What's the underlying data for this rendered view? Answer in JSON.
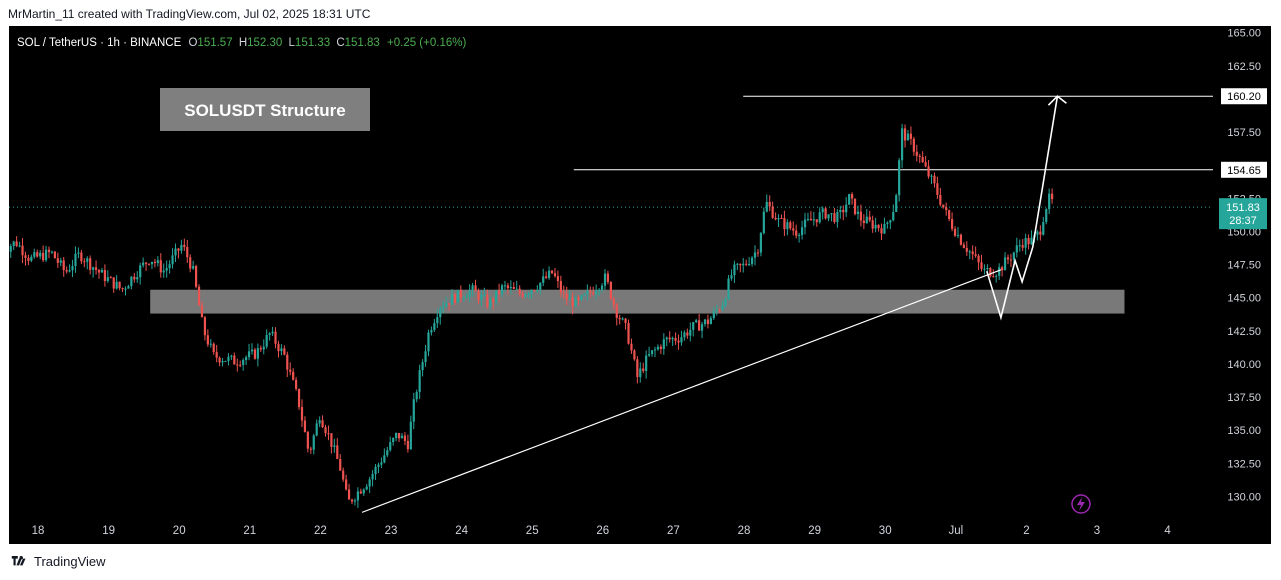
{
  "attribution": "MrMartin_11 created with TradingView.com, Jul 02, 2025 18:31 UTC",
  "footer": {
    "brand": "TradingView"
  },
  "colors": {
    "background": "#000000",
    "up_candle": "#26a69a",
    "down_candle": "#ef5350",
    "annotation": "#ffffff",
    "zone": "#7f7f7f",
    "price_badge": "#26a69a",
    "ohlc_up": "#4caf50"
  },
  "legend": {
    "symbol": "SOL / TetherUS · 1h · BINANCE",
    "o_label": "O",
    "o_value": "151.57",
    "h_label": "H",
    "h_value": "152.30",
    "l_label": "L",
    "l_value": "151.33",
    "c_label": "C",
    "c_value": "151.83",
    "change": "+0.25 (+0.16%)"
  },
  "icons": {
    "lightning": "lightning-icon",
    "logo": "tradingview-logo-icon"
  },
  "chart_data": {
    "type": "candlestick",
    "title": "SOLUSDT Structure",
    "interval": "1h",
    "x_labels": [
      "18",
      "19",
      "20",
      "21",
      "22",
      "23",
      "24",
      "25",
      "26",
      "27",
      "28",
      "29",
      "30",
      "Jul",
      "2",
      "3",
      "4"
    ],
    "y_ticks": [
      "165.00",
      "162.50",
      "160.20",
      "157.50",
      "154.65",
      "152.50",
      "151.83",
      "150.00",
      "147.50",
      "145.00",
      "142.50",
      "140.00",
      "137.50",
      "135.00",
      "132.50",
      "130.00"
    ],
    "ylim": [
      128.3,
      165.5
    ],
    "current_price": {
      "value": 151.83,
      "label": "151.83",
      "countdown": "28:37"
    },
    "horizontal_levels": [
      {
        "value": 160.2,
        "label": "160.20",
        "from_day": 28.4
      },
      {
        "value": 154.65,
        "label": "154.65",
        "from_day": 26.0
      }
    ],
    "support_zone": {
      "low": 143.8,
      "high": 145.6,
      "from_day": 20.0,
      "to_day": 33.8
    },
    "trendline": {
      "from": {
        "day": 23.0,
        "price": 128.8
      },
      "to": {
        "day": 32.05,
        "price": 147.1
      }
    },
    "projection_path": [
      {
        "day": 31.85,
        "price": 147.0
      },
      {
        "day": 32.05,
        "price": 143.5
      },
      {
        "day": 32.25,
        "price": 147.8
      },
      {
        "day": 32.35,
        "price": 146.2
      },
      {
        "day": 32.5,
        "price": 148.8
      },
      {
        "day": 32.85,
        "price": 160.2
      }
    ],
    "price_path": [
      [
        17.9,
        148.6
      ],
      [
        18.1,
        149.2
      ],
      [
        18.3,
        147.9
      ],
      [
        18.6,
        148.4
      ],
      [
        18.8,
        146.9
      ],
      [
        19.0,
        148.3
      ],
      [
        19.3,
        146.8
      ],
      [
        19.6,
        145.6
      ],
      [
        19.8,
        146.9
      ],
      [
        20.0,
        148.0
      ],
      [
        20.2,
        147.0
      ],
      [
        20.45,
        149.0
      ],
      [
        20.6,
        147.2
      ],
      [
        20.75,
        142.6
      ],
      [
        20.9,
        140.6
      ],
      [
        21.2,
        140.2
      ],
      [
        21.5,
        140.8
      ],
      [
        21.7,
        142.3
      ],
      [
        21.9,
        140.6
      ],
      [
        22.1,
        137.2
      ],
      [
        22.25,
        133.2
      ],
      [
        22.4,
        136.2
      ],
      [
        22.55,
        134.3
      ],
      [
        22.7,
        132.0
      ],
      [
        22.8,
        129.5
      ],
      [
        22.95,
        130.4
      ],
      [
        23.1,
        131.3
      ],
      [
        23.3,
        133.0
      ],
      [
        23.5,
        134.7
      ],
      [
        23.65,
        134.0
      ],
      [
        23.75,
        137.5
      ],
      [
        23.85,
        140.0
      ],
      [
        23.95,
        142.5
      ],
      [
        24.1,
        144.4
      ],
      [
        24.3,
        145.0
      ],
      [
        24.55,
        145.6
      ],
      [
        24.8,
        144.5
      ],
      [
        25.0,
        145.8
      ],
      [
        25.25,
        145.3
      ],
      [
        25.5,
        146.0
      ],
      [
        25.7,
        146.9
      ],
      [
        25.85,
        145.1
      ],
      [
        26.05,
        144.5
      ],
      [
        26.25,
        145.5
      ],
      [
        26.45,
        146.5
      ],
      [
        26.6,
        144.0
      ],
      [
        26.75,
        142.5
      ],
      [
        26.9,
        139.0
      ],
      [
        27.05,
        140.5
      ],
      [
        27.3,
        141.8
      ],
      [
        27.5,
        142.0
      ],
      [
        27.7,
        142.8
      ],
      [
        27.9,
        143.2
      ],
      [
        28.1,
        144.5
      ],
      [
        28.25,
        147.0
      ],
      [
        28.4,
        147.4
      ],
      [
        28.6,
        148.6
      ],
      [
        28.72,
        152.2
      ],
      [
        28.9,
        150.8
      ],
      [
        29.15,
        150.0
      ],
      [
        29.35,
        150.8
      ],
      [
        29.55,
        151.4
      ],
      [
        29.75,
        151.0
      ],
      [
        29.9,
        152.5
      ],
      [
        30.05,
        151.0
      ],
      [
        30.2,
        150.6
      ],
      [
        30.4,
        150.2
      ],
      [
        30.55,
        152.0
      ],
      [
        30.65,
        157.5
      ],
      [
        30.8,
        156.5
      ],
      [
        30.95,
        155.0
      ],
      [
        31.1,
        153.5
      ],
      [
        31.3,
        151.0
      ],
      [
        31.5,
        149.2
      ],
      [
        31.65,
        148.2
      ],
      [
        31.8,
        147.0
      ],
      [
        32.0,
        147.0
      ],
      [
        32.2,
        148.2
      ],
      [
        32.35,
        149.2
      ],
      [
        32.5,
        149.3
      ],
      [
        32.6,
        150.0
      ],
      [
        32.68,
        151.8
      ],
      [
        32.75,
        152.6
      ],
      [
        32.8,
        151.83
      ]
    ]
  },
  "title_box": {
    "text": "SOLUSDT Structure"
  }
}
